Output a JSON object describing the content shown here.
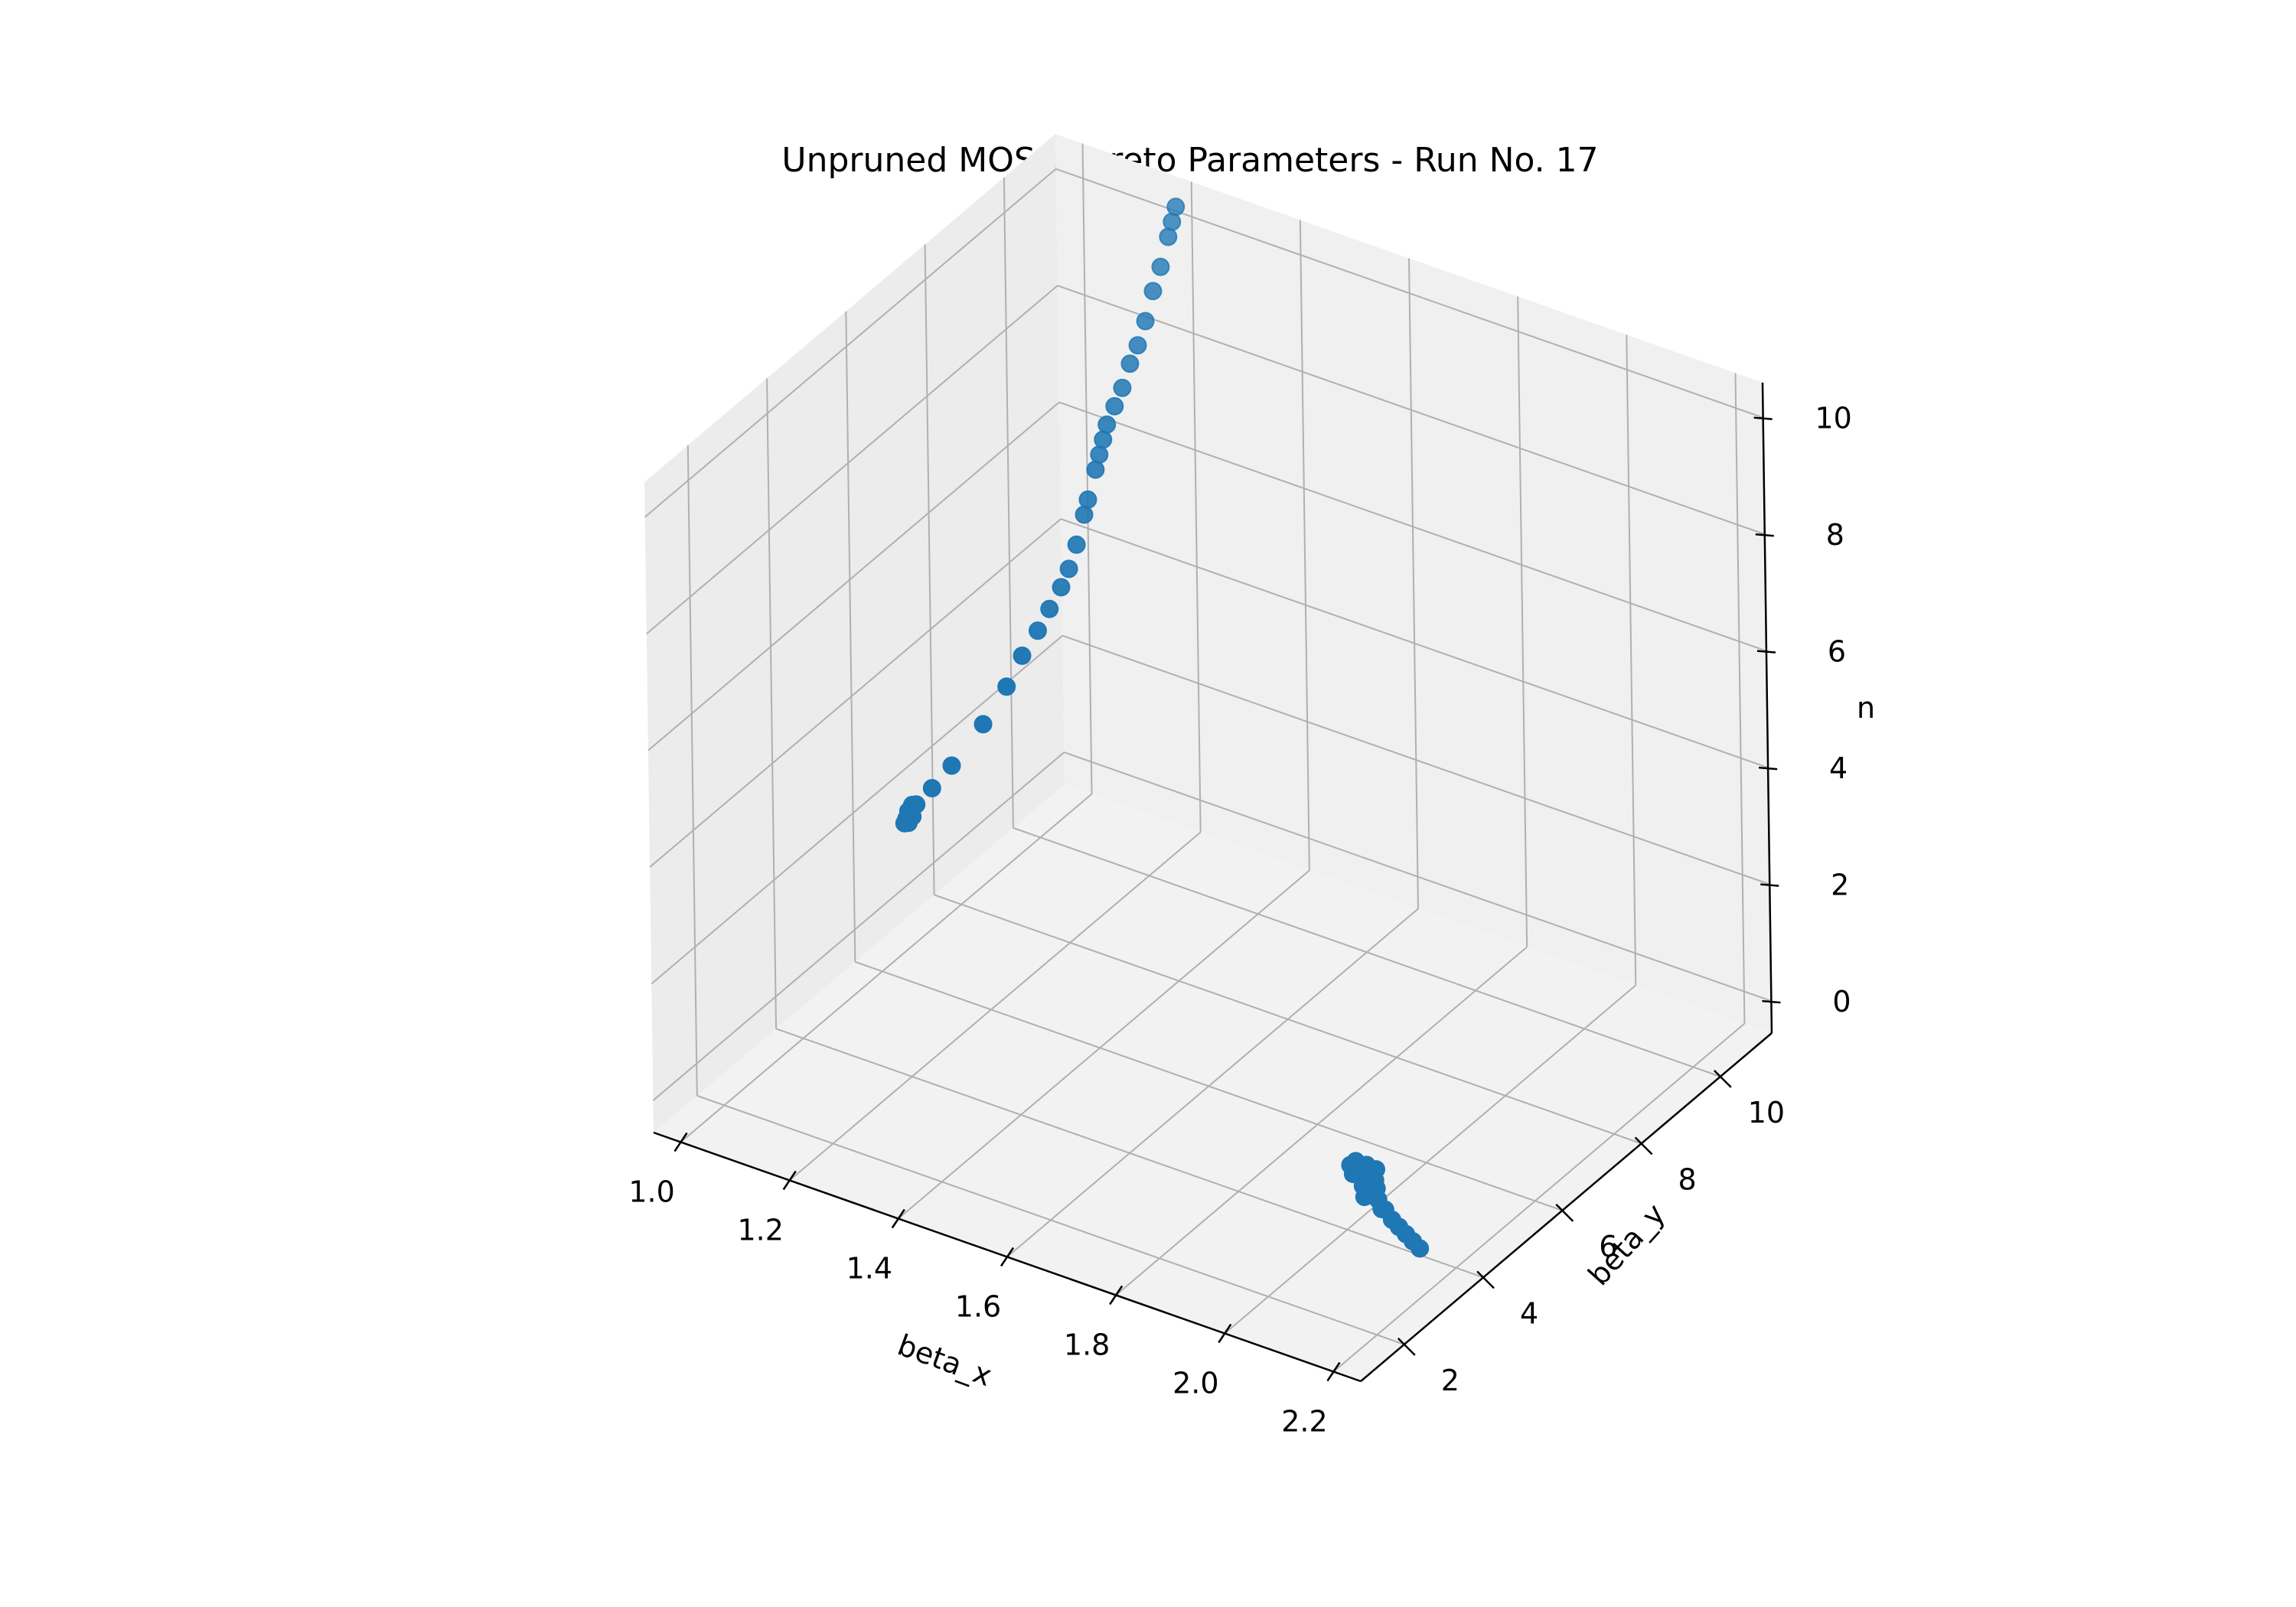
{
  "chart_data": {
    "type": "scatter",
    "projection": "3d",
    "title": "Unpruned MOSA Pareto Parameters - Run No. 17",
    "xlabel": "beta_x",
    "ylabel": "beta_y",
    "zlabel": "n",
    "xlim": [
      0.95,
      2.25
    ],
    "ylim": [
      0.9,
      11.3
    ],
    "zlim": [
      -0.55,
      10.6
    ],
    "xticks": [
      "1.0",
      "1.2",
      "1.4",
      "1.6",
      "1.8",
      "2.0",
      "2.2"
    ],
    "yticks": [
      "2",
      "4",
      "6",
      "8",
      "10"
    ],
    "zticks": [
      "0",
      "2",
      "4",
      "6",
      "8",
      "10"
    ],
    "grid": true,
    "color": "#1f77b4",
    "points": [
      [
        1.2,
        10.9,
        10.4
      ],
      [
        1.2,
        10.8,
        10.2
      ],
      [
        1.2,
        10.7,
        10.0
      ],
      [
        1.2,
        10.5,
        9.6
      ],
      [
        1.2,
        10.3,
        9.3
      ],
      [
        1.2,
        10.1,
        8.9
      ],
      [
        1.2,
        9.9,
        8.6
      ],
      [
        1.2,
        9.7,
        8.4
      ],
      [
        1.2,
        9.5,
        8.1
      ],
      [
        1.2,
        9.3,
        7.9
      ],
      [
        1.2,
        9.1,
        7.7
      ],
      [
        1.2,
        9.0,
        7.5
      ],
      [
        1.2,
        8.9,
        7.3
      ],
      [
        1.2,
        8.8,
        7.1
      ],
      [
        1.2,
        8.6,
        6.7
      ],
      [
        1.2,
        8.5,
        6.5
      ],
      [
        1.2,
        8.3,
        6.1
      ],
      [
        1.2,
        8.1,
        5.8
      ],
      [
        1.2,
        7.9,
        5.6
      ],
      [
        1.2,
        7.6,
        5.4
      ],
      [
        1.2,
        7.3,
        5.2
      ],
      [
        1.2,
        6.9,
        5.0
      ],
      [
        1.2,
        6.5,
        4.7
      ],
      [
        1.2,
        5.9,
        4.4
      ],
      [
        1.2,
        5.1,
        4.15
      ],
      [
        1.2,
        4.6,
        4.05
      ],
      [
        1.2,
        4.2,
        4.0
      ],
      [
        1.2,
        4.1,
        4.05
      ],
      [
        1.2,
        4.05,
        3.95
      ],
      [
        1.2,
        4.0,
        4.0
      ],
      [
        1.2,
        3.95,
        3.9
      ],
      [
        1.2,
        4.1,
        3.85
      ],
      [
        1.2,
        4.0,
        3.8
      ],
      [
        1.2,
        3.9,
        3.85
      ],
      [
        1.99,
        4.4,
        0.3
      ],
      [
        1.99,
        4.3,
        0.2
      ],
      [
        2.0,
        4.25,
        0.4
      ],
      [
        2.01,
        4.2,
        0.3
      ],
      [
        2.0,
        4.1,
        0.5
      ],
      [
        2.02,
        4.15,
        0.2
      ],
      [
        2.02,
        4.05,
        0.45
      ],
      [
        2.03,
        4.0,
        0.3
      ],
      [
        2.03,
        4.1,
        0.6
      ],
      [
        2.04,
        4.0,
        0.4
      ],
      [
        2.04,
        3.9,
        0.2
      ],
      [
        2.05,
        3.95,
        0.5
      ],
      [
        2.05,
        3.85,
        0.3
      ],
      [
        2.06,
        3.9,
        0.55
      ],
      [
        2.06,
        3.8,
        0.35
      ],
      [
        2.07,
        3.8,
        0.5
      ],
      [
        2.08,
        3.7,
        0.4
      ],
      [
        2.09,
        3.65,
        0.3
      ],
      [
        2.1,
        3.6,
        0.35
      ],
      [
        2.12,
        3.5,
        0.3
      ],
      [
        2.14,
        3.4,
        0.3
      ],
      [
        2.16,
        3.3,
        0.3
      ],
      [
        2.18,
        3.2,
        0.3
      ],
      [
        2.2,
        3.1,
        0.3
      ],
      [
        2.02,
        4.2,
        0.1
      ],
      [
        2.03,
        4.3,
        0.2
      ],
      [
        2.01,
        4.1,
        0.6
      ],
      [
        2.04,
        4.2,
        0.5
      ]
    ]
  }
}
